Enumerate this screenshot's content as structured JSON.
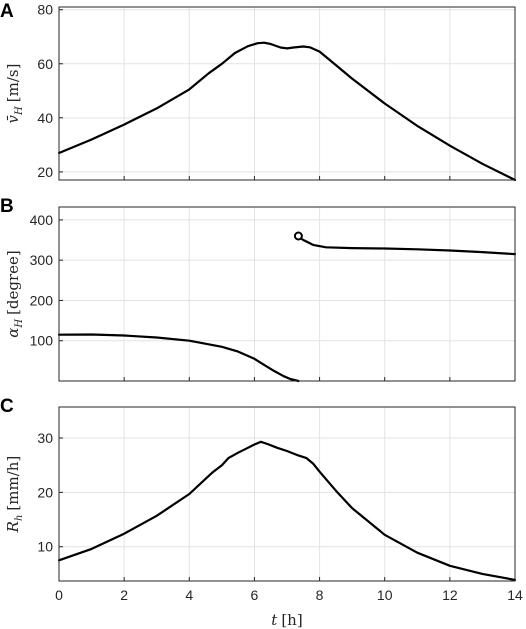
{
  "chart_data": [
    {
      "type": "line",
      "panel": "A",
      "ylabel": "v̄_H [m/s]",
      "ylabel_main": "v̄",
      "ylabel_sub": "H",
      "ylabel_unit": "[m/s]",
      "xlim": [
        0,
        14
      ],
      "ylim": [
        17,
        81
      ],
      "yticks": [
        20,
        40,
        60,
        80
      ],
      "grid": true,
      "series": [
        {
          "x": [
            0,
            1,
            2,
            3,
            4,
            4.6,
            5,
            5.4,
            5.8,
            6.1,
            6.3,
            6.5,
            6.8,
            7.0,
            7.2,
            7.5,
            7.7,
            8.0,
            8.5,
            9,
            10,
            11,
            12,
            13,
            14
          ],
          "y": [
            27,
            32,
            37.5,
            43.5,
            50.5,
            56.5,
            60,
            64,
            66.5,
            67.6,
            67.8,
            67.3,
            66,
            65.7,
            66,
            66.4,
            66.1,
            64.5,
            59.5,
            54.5,
            45.3,
            37,
            29.7,
            23,
            17
          ]
        }
      ]
    },
    {
      "type": "line",
      "panel": "B",
      "ylabel": "α_H [degree]",
      "ylabel_main": "α",
      "ylabel_sub": "H",
      "ylabel_unit": "[degree]",
      "xlim": [
        0,
        14
      ],
      "ylim": [
        0,
        432
      ],
      "yticks": [
        100,
        200,
        300,
        400
      ],
      "grid": true,
      "series": [
        {
          "x": [
            0,
            1,
            2,
            3,
            4,
            5,
            5.5,
            6,
            6.3,
            6.6,
            6.9,
            7.1,
            7.35
          ],
          "y": [
            115,
            115.5,
            113,
            108,
            100,
            85,
            73,
            55,
            40,
            25,
            12,
            5,
            0
          ]
        },
        {
          "x": [
            7.35,
            7.5,
            7.8,
            8.2,
            9,
            10,
            11,
            12,
            13,
            14
          ],
          "y": [
            358,
            350,
            338,
            332,
            330,
            329,
            327,
            324,
            320,
            315
          ]
        }
      ],
      "marker": {
        "x": 7.35,
        "y": 360,
        "style": "open-circle"
      }
    },
    {
      "type": "line",
      "panel": "C",
      "ylabel": "R_h [mm/h]",
      "ylabel_main": "R",
      "ylabel_sub": "h",
      "ylabel_unit": "[mm/h]",
      "xlabel": "t [h]",
      "xlabel_main": "t",
      "xlabel_unit": "[h]",
      "xlim": [
        0,
        14
      ],
      "ylim": [
        3.7,
        35.7
      ],
      "xticks": [
        0,
        2,
        4,
        6,
        8,
        10,
        12,
        14
      ],
      "yticks": [
        10,
        20,
        30
      ],
      "grid": true,
      "series": [
        {
          "x": [
            0,
            1,
            2,
            3,
            4,
            4.5,
            4.7,
            5,
            5.2,
            5.5,
            5.8,
            6.0,
            6.2,
            6.4,
            6.7,
            7.0,
            7.3,
            7.6,
            7.8,
            8.0,
            8.5,
            9,
            10,
            11,
            12,
            13,
            14
          ],
          "y": [
            7.5,
            9.6,
            12.4,
            15.7,
            19.7,
            22.5,
            23.6,
            25,
            26.3,
            27.3,
            28.2,
            28.8,
            29.3,
            28.9,
            28.2,
            27.6,
            26.9,
            26.3,
            25.3,
            23.8,
            20.3,
            17.1,
            12.2,
            8.9,
            6.5,
            5,
            3.9
          ]
        }
      ]
    }
  ]
}
